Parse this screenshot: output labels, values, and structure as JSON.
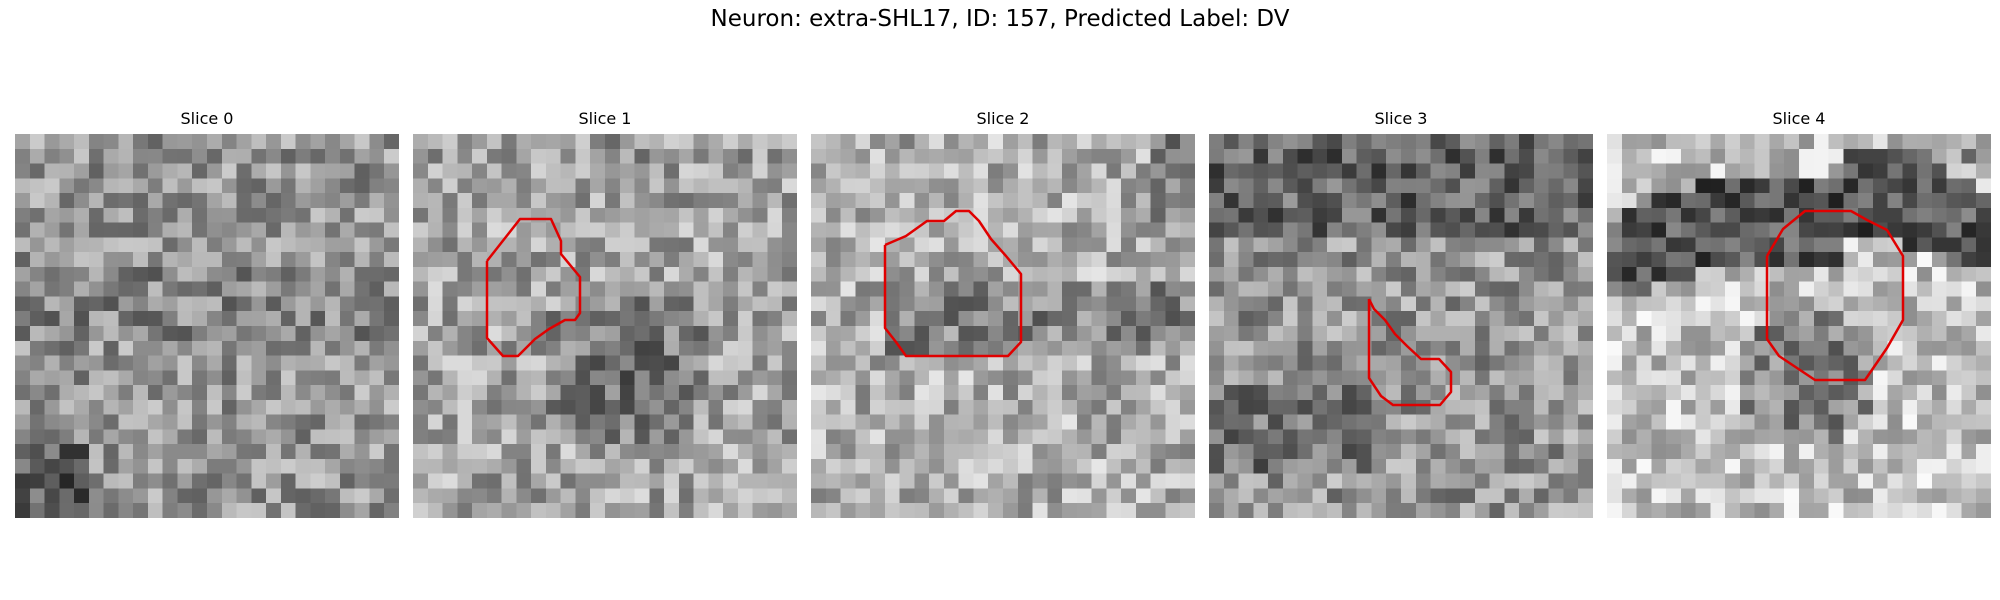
{
  "suptitle": "Neuron: extra-SHL17, ID: 157, Predicted Label: DV",
  "outline_color": "#e00000",
  "panels": [
    {
      "title": "Slice 0",
      "has_outline": false
    },
    {
      "title": "Slice 1",
      "has_outline": true
    },
    {
      "title": "Slice 2",
      "has_outline": true
    },
    {
      "title": "Slice 3",
      "has_outline": true
    },
    {
      "title": "Slice 4",
      "has_outline": true
    }
  ]
}
